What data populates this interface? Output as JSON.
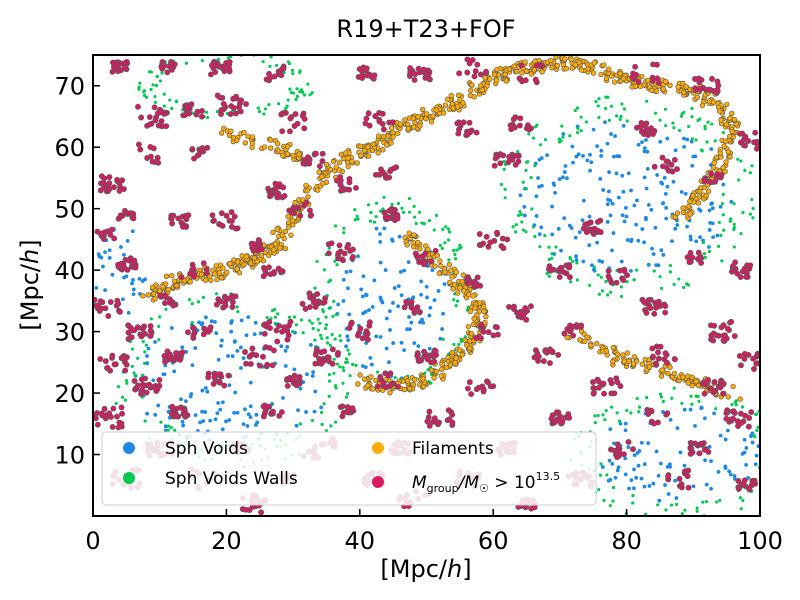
{
  "chart_data": {
    "type": "scatter",
    "title": "R19+T23+FOF",
    "xlabel": "[Mpc/h]",
    "ylabel": "[Mpc/h]",
    "xlim": [
      0,
      100
    ],
    "ylim": [
      0,
      75
    ],
    "xticks": [
      0,
      20,
      40,
      60,
      80,
      100
    ],
    "yticks": [
      10,
      20,
      30,
      40,
      50,
      60,
      70
    ],
    "grid": false,
    "legend_position": "lower-left",
    "series": [
      {
        "name": "Sph Voids",
        "label": "Sph Voids",
        "color": "#1e88e5",
        "regions": [
          {
            "cx": 21,
            "cy": 22,
            "rx": 15,
            "ry": 11
          },
          {
            "cx": 80,
            "cy": 52,
            "rx": 16,
            "ry": 13
          },
          {
            "cx": 45,
            "cy": 35,
            "rx": 9,
            "ry": 13
          },
          {
            "cx": 88,
            "cy": 10,
            "rx": 13,
            "ry": 8
          },
          {
            "cx": 4,
            "cy": 40,
            "rx": 4,
            "ry": 8
          }
        ]
      },
      {
        "name": "Sph Voids Walls",
        "label": "Sph Voids Walls",
        "color": "#00c853",
        "regions": [
          {
            "cx": 21,
            "cy": 22,
            "rx": 17,
            "ry": 13
          },
          {
            "cx": 80,
            "cy": 52,
            "rx": 18,
            "ry": 15
          },
          {
            "cx": 45,
            "cy": 36,
            "rx": 11,
            "ry": 15
          },
          {
            "cx": 88,
            "cy": 10,
            "rx": 15,
            "ry": 10
          },
          {
            "cx": 20,
            "cy": 70,
            "rx": 12,
            "ry": 5
          }
        ]
      },
      {
        "name": "Filaments",
        "label": "Filaments",
        "color": "#ffab00",
        "paths": [
          [
            [
              26,
              43
            ],
            [
              30,
              48
            ],
            [
              33,
              54
            ],
            [
              38,
              58
            ],
            [
              42,
              60
            ],
            [
              46,
              63
            ],
            [
              50,
              65
            ],
            [
              54,
              67
            ],
            [
              58,
              70
            ],
            [
              62,
              72
            ],
            [
              66,
              73
            ],
            [
              70,
              74
            ]
          ],
          [
            [
              8,
              36
            ],
            [
              12,
              38
            ],
            [
              16,
              39
            ],
            [
              20,
              40
            ],
            [
              24,
              42
            ],
            [
              28,
              44
            ]
          ],
          [
            [
              47,
              46
            ],
            [
              52,
              41
            ],
            [
              56,
              37
            ],
            [
              58,
              33
            ],
            [
              57,
              29
            ],
            [
              54,
              25
            ],
            [
              50,
              22
            ],
            [
              45,
              21
            ],
            [
              40,
              22
            ]
          ],
          [
            [
              70,
              74
            ],
            [
              75,
              73
            ],
            [
              80,
              71
            ],
            [
              85,
              70
            ],
            [
              90,
              69
            ],
            [
              94,
              67
            ],
            [
              96,
              63
            ],
            [
              94,
              57
            ],
            [
              91,
              52
            ],
            [
              88,
              49
            ]
          ],
          [
            [
              72,
              30
            ],
            [
              78,
              26
            ],
            [
              84,
              24
            ],
            [
              90,
              22
            ],
            [
              96,
              20
            ]
          ],
          [
            [
              20,
              62
            ],
            [
              28,
              60
            ],
            [
              32,
              58
            ]
          ]
        ]
      },
      {
        "name": "Mgroup/M > 10^13.5",
        "label_main": "M",
        "label_sub": "group",
        "label_mid": "/M",
        "label_sub2": "☉",
        "label_gt": " > 10",
        "label_sup": "13.5",
        "color": "#d81b60",
        "groups": [
          [
            4,
            73
          ],
          [
            11,
            73
          ],
          [
            19,
            73
          ],
          [
            27,
            72
          ],
          [
            41,
            72
          ],
          [
            49,
            72
          ],
          [
            57,
            73
          ],
          [
            66,
            72
          ],
          [
            83,
            72
          ],
          [
            92,
            70
          ],
          [
            21,
            67
          ],
          [
            15,
            66
          ],
          [
            30,
            64
          ],
          [
            9,
            65
          ],
          [
            43,
            64
          ],
          [
            56,
            63
          ],
          [
            64,
            64
          ],
          [
            83,
            63
          ],
          [
            98,
            61
          ],
          [
            8,
            59
          ],
          [
            16,
            59
          ],
          [
            33,
            58
          ],
          [
            62,
            58
          ],
          [
            86,
            57
          ],
          [
            3,
            54
          ],
          [
            28,
            53
          ],
          [
            38,
            54
          ],
          [
            44,
            56
          ],
          [
            93,
            55
          ],
          [
            5,
            49
          ],
          [
            13,
            48
          ],
          [
            20,
            48
          ],
          [
            31,
            50
          ],
          [
            45,
            49
          ],
          [
            60,
            45
          ],
          [
            75,
            47
          ],
          [
            2,
            46
          ],
          [
            24,
            44
          ],
          [
            37,
            43
          ],
          [
            50,
            42
          ],
          [
            70,
            40
          ],
          [
            90,
            42
          ],
          [
            5,
            41
          ],
          [
            15,
            40
          ],
          [
            27,
            40
          ],
          [
            57,
            38
          ],
          [
            79,
            39
          ],
          [
            97,
            40
          ],
          [
            2,
            34
          ],
          [
            11,
            35
          ],
          [
            20,
            35
          ],
          [
            33,
            35
          ],
          [
            48,
            34
          ],
          [
            64,
            33
          ],
          [
            84,
            34
          ],
          [
            7,
            30
          ],
          [
            16,
            30
          ],
          [
            28,
            30
          ],
          [
            40,
            30
          ],
          [
            59,
            30
          ],
          [
            72,
            30
          ],
          [
            94,
            30
          ],
          [
            3,
            25
          ],
          [
            12,
            26
          ],
          [
            25,
            26
          ],
          [
            35,
            26
          ],
          [
            50,
            26
          ],
          [
            68,
            26
          ],
          [
            86,
            26
          ],
          [
            99,
            25
          ],
          [
            8,
            21
          ],
          [
            19,
            22
          ],
          [
            30,
            22
          ],
          [
            44,
            22
          ],
          [
            58,
            21
          ],
          [
            77,
            21
          ],
          [
            93,
            21
          ],
          [
            2,
            16
          ],
          [
            13,
            17
          ],
          [
            27,
            17
          ],
          [
            38,
            17
          ],
          [
            52,
            16
          ],
          [
            70,
            16
          ],
          [
            85,
            16
          ],
          [
            97,
            16
          ],
          [
            10,
            11
          ],
          [
            22,
            11
          ],
          [
            34,
            11
          ],
          [
            46,
            11
          ],
          [
            62,
            11
          ],
          [
            79,
            11
          ],
          [
            91,
            11
          ],
          [
            5,
            6
          ],
          [
            17,
            6
          ],
          [
            29,
            6
          ],
          [
            42,
            6
          ],
          [
            56,
            6
          ],
          [
            73,
            6
          ],
          [
            88,
            6
          ],
          [
            98,
            5
          ],
          [
            48,
            3
          ],
          [
            24,
            2
          ],
          [
            65,
            2
          ]
        ]
      }
    ]
  }
}
